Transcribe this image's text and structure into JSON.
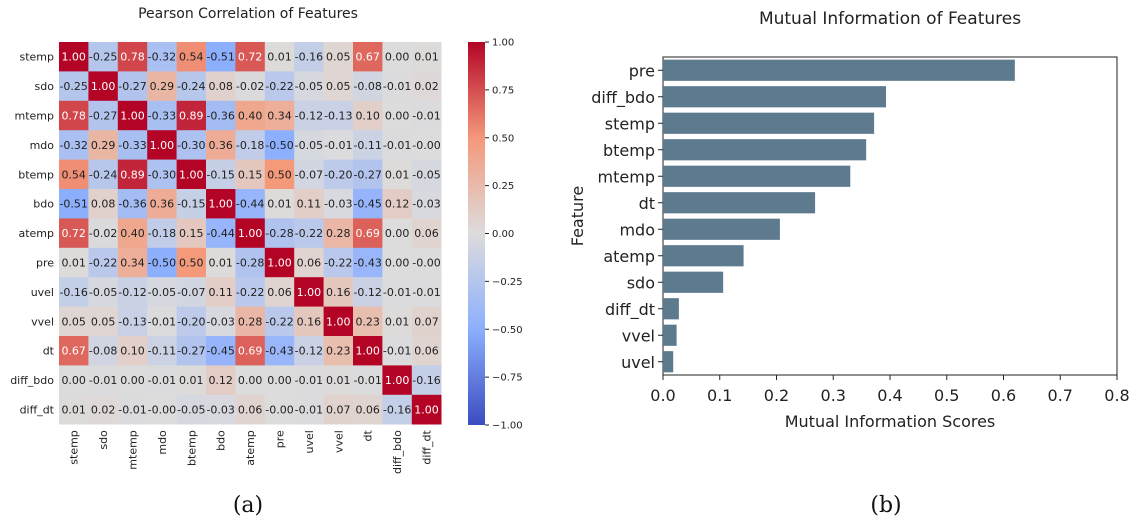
{
  "chart_data": [
    {
      "type": "heatmap",
      "title": "Pearson Correlation of Features",
      "labels": [
        "stemp",
        "sdo",
        "mtemp",
        "mdo",
        "btemp",
        "bdo",
        "atemp",
        "pre",
        "uvel",
        "vvel",
        "dt",
        "diff_bdo",
        "diff_dt"
      ],
      "matrix": [
        [
          "1.00",
          "-0.25",
          "0.78",
          "-0.32",
          "0.54",
          "-0.51",
          "0.72",
          "0.01",
          "-0.16",
          "0.05",
          "0.67",
          "0.00",
          "0.01"
        ],
        [
          "-0.25",
          "1.00",
          "-0.27",
          "0.29",
          "-0.24",
          "0.08",
          "-0.02",
          "-0.22",
          "-0.05",
          "0.05",
          "-0.08",
          "-0.01",
          "0.02"
        ],
        [
          "0.78",
          "-0.27",
          "1.00",
          "-0.33",
          "0.89",
          "-0.36",
          "0.40",
          "0.34",
          "-0.12",
          "-0.13",
          "0.10",
          "0.00",
          "-0.01"
        ],
        [
          "-0.32",
          "0.29",
          "-0.33",
          "1.00",
          "-0.30",
          "0.36",
          "-0.18",
          "-0.50",
          "-0.05",
          "-0.01",
          "-0.11",
          "-0.01",
          "-0.00"
        ],
        [
          "0.54",
          "-0.24",
          "0.89",
          "-0.30",
          "1.00",
          "-0.15",
          "0.15",
          "0.50",
          "-0.07",
          "-0.20",
          "-0.27",
          "0.01",
          "-0.05"
        ],
        [
          "-0.51",
          "0.08",
          "-0.36",
          "0.36",
          "-0.15",
          "1.00",
          "-0.44",
          "0.01",
          "0.11",
          "-0.03",
          "-0.45",
          "0.12",
          "-0.03"
        ],
        [
          "0.72",
          "-0.02",
          "0.40",
          "-0.18",
          "0.15",
          "-0.44",
          "1.00",
          "-0.28",
          "-0.22",
          "0.28",
          "0.69",
          "0.00",
          "0.06"
        ],
        [
          "0.01",
          "-0.22",
          "0.34",
          "-0.50",
          "0.50",
          "0.01",
          "-0.28",
          "1.00",
          "0.06",
          "-0.22",
          "-0.43",
          "0.00",
          "-0.00"
        ],
        [
          "-0.16",
          "-0.05",
          "-0.12",
          "-0.05",
          "-0.07",
          "0.11",
          "-0.22",
          "0.06",
          "1.00",
          "0.16",
          "-0.12",
          "-0.01",
          "-0.01"
        ],
        [
          "0.05",
          "0.05",
          "-0.13",
          "-0.01",
          "-0.20",
          "-0.03",
          "0.28",
          "-0.22",
          "0.16",
          "1.00",
          "0.23",
          "0.01",
          "0.07"
        ],
        [
          "0.67",
          "-0.08",
          "0.10",
          "-0.11",
          "-0.27",
          "-0.45",
          "0.69",
          "-0.43",
          "-0.12",
          "0.23",
          "1.00",
          "-0.01",
          "0.06"
        ],
        [
          "0.00",
          "-0.01",
          "0.00",
          "-0.01",
          "0.01",
          "0.12",
          "0.00",
          "0.00",
          "-0.01",
          "0.01",
          "-0.01",
          "1.00",
          "-0.16"
        ],
        [
          "0.01",
          "0.02",
          "-0.01",
          "-0.00",
          "-0.05",
          "-0.03",
          "0.06",
          "-0.00",
          "-0.01",
          "0.07",
          "0.06",
          "-0.16",
          "1.00"
        ]
      ],
      "colorbar": {
        "range": [
          -1.0,
          1.0
        ],
        "ticks": [
          "1.00",
          "0.75",
          "0.50",
          "0.25",
          "0.00",
          "−0.25",
          "−0.50",
          "−0.75",
          "−1.00"
        ]
      },
      "panel_label": "(a)"
    },
    {
      "type": "bar",
      "orientation": "horizontal",
      "title": "Mutual Information of Features",
      "categories": [
        "pre",
        "diff_bdo",
        "stemp",
        "btemp",
        "mtemp",
        "dt",
        "mdo",
        "atemp",
        "sdo",
        "diff_dt",
        "vvel",
        "uvel"
      ],
      "values": [
        0.62,
        0.393,
        0.372,
        0.358,
        0.33,
        0.268,
        0.206,
        0.142,
        0.106,
        0.028,
        0.024,
        0.018
      ],
      "xlabel": "Mutual Information Scores",
      "ylabel": "Feature",
      "xlim": [
        0,
        0.8
      ],
      "xticks": [
        "0.0",
        "0.1",
        "0.2",
        "0.3",
        "0.4",
        "0.5",
        "0.6",
        "0.7",
        "0.8"
      ],
      "bar_color": "#5e7a8e",
      "panel_label": "(b)"
    }
  ]
}
